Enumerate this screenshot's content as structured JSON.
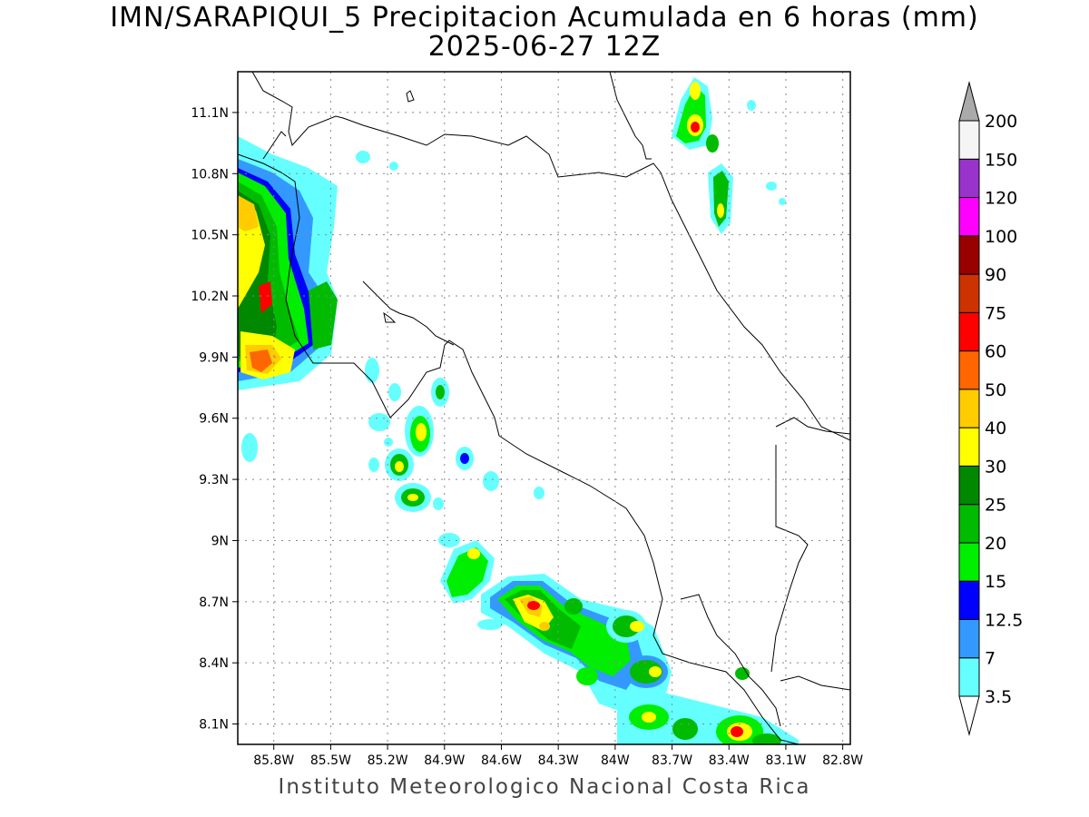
{
  "title": {
    "line1": "IMN/SARAPIQUI_5 Precipitacion Acumulada en 6 horas (mm)",
    "line2": "2025-06-27 12Z"
  },
  "footer": "Instituto Meteorologico Nacional Costa Rica",
  "map": {
    "lat_labels": [
      "11.1N",
      "10.8N",
      "10.5N",
      "10.2N",
      "9.9N",
      "9.6N",
      "9.3N",
      "9N",
      "8.7N",
      "8.4N",
      "8.1N"
    ],
    "lat_values": [
      11.1,
      10.8,
      10.5,
      10.2,
      9.9,
      9.6,
      9.3,
      9.0,
      8.7,
      8.4,
      8.1
    ],
    "lon_labels": [
      "85.8W",
      "85.5W",
      "85.2W",
      "84.9W",
      "84.6W",
      "84.3W",
      "84W",
      "83.7W",
      "83.4W",
      "83.1W",
      "82.8W"
    ],
    "lon_values": [
      -85.8,
      -85.5,
      -85.2,
      -84.9,
      -84.6,
      -84.3,
      -84.0,
      -83.7,
      -83.4,
      -83.1,
      -82.8
    ],
    "lon_range": [
      -85.99,
      -82.76
    ],
    "lat_range": [
      8.0,
      11.3
    ],
    "grid": true
  },
  "colorbar": {
    "labels": [
      "3.5",
      "7",
      "12.5",
      "15",
      "20",
      "25",
      "30",
      "40",
      "50",
      "60",
      "75",
      "90",
      "100",
      "120",
      "150",
      "200"
    ],
    "colors": [
      "#66ffff",
      "#3399ff",
      "#0000ff",
      "#00ee00",
      "#00bb00",
      "#008800",
      "#ffff00",
      "#ffcc00",
      "#ff6600",
      "#ff0000",
      "#cc3300",
      "#990000",
      "#ff00ff",
      "#9933cc",
      "#f5f5f5"
    ],
    "over_color": "#aaaaaa",
    "under_color": "#ffffff"
  }
}
